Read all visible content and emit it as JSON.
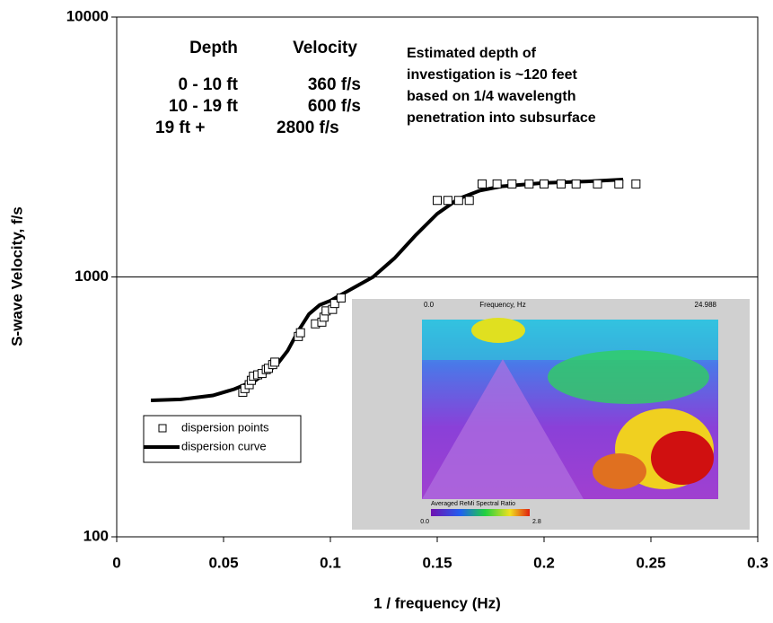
{
  "chart_data": {
    "type": "scatter-line",
    "xlabel": "1 / frequency (Hz)",
    "ylabel": "S-wave Velocity, f/s",
    "xlim": [
      0,
      0.3
    ],
    "xticks": [
      0,
      0.05,
      0.1,
      0.15,
      0.2,
      0.25,
      0.3
    ],
    "ylim": [
      100,
      10000
    ],
    "yticks": [
      100,
      1000,
      10000
    ],
    "log_y": true,
    "grid_y": [
      1000
    ],
    "legend": "lower left",
    "series": [
      {
        "name": "dispersion points",
        "kind": "markers",
        "color": "#000000",
        "x": [
          0.059,
          0.06,
          0.062,
          0.063,
          0.064,
          0.066,
          0.068,
          0.07,
          0.071,
          0.073,
          0.074,
          0.085,
          0.086,
          0.093,
          0.096,
          0.097,
          0.098,
          0.101,
          0.102,
          0.105,
          0.15,
          0.155,
          0.16,
          0.165,
          0.171,
          0.178,
          0.185,
          0.193,
          0.2,
          0.208,
          0.215,
          0.225,
          0.235,
          0.243
        ],
        "values": [
          360,
          372,
          385,
          400,
          415,
          420,
          425,
          440,
          445,
          460,
          470,
          590,
          610,
          660,
          670,
          700,
          740,
          750,
          790,
          830,
          1970,
          1970,
          1970,
          1970,
          2280,
          2280,
          2280,
          2280,
          2280,
          2280,
          2280,
          2280,
          2280,
          2280
        ]
      },
      {
        "name": "dispersion curve",
        "kind": "line",
        "color": "#000000",
        "x": [
          0.016,
          0.03,
          0.045,
          0.055,
          0.065,
          0.075,
          0.08,
          0.085,
          0.09,
          0.095,
          0.1,
          0.11,
          0.12,
          0.13,
          0.14,
          0.15,
          0.16,
          0.17,
          0.18,
          0.2,
          0.22,
          0.237
        ],
        "values": [
          335,
          338,
          350,
          370,
          400,
          460,
          520,
          620,
          720,
          780,
          810,
          900,
          1000,
          1180,
          1450,
          1750,
          2000,
          2150,
          2230,
          2300,
          2330,
          2370
        ]
      }
    ],
    "annotations": [
      "Depth",
      "Velocity",
      "0 - 10 ft",
      "360 f/s",
      "10 - 19 ft",
      "600 f/s",
      "19 ft +",
      "2800 f/s",
      "Estimated depth of",
      "investigation is ~120 feet",
      "based on 1/4 wavelength",
      "penetration into subsurface"
    ],
    "inset": {
      "title": "Averaged ReMi Spectral Ratio",
      "x_axis": "Frequency, Hz",
      "x_start": "0.0",
      "x_end": "24.988",
      "scale_min": "0.0",
      "scale_max": "2.8"
    }
  }
}
